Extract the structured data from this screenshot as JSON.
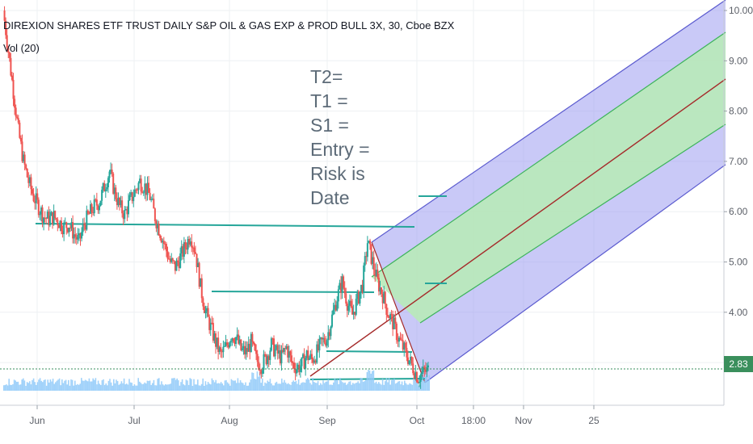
{
  "header": {
    "title": "DIREXION SHARES ETF TRUST DAILY S&P OIL & GAS EXP & PROD BULL 3X, 30, Cboe BZX",
    "volume_label": "Vol (20)"
  },
  "notes": [
    "T2=",
    "T1 =",
    "S1 =",
    "Entry =",
    "Risk is",
    "Date"
  ],
  "last_price": "2.83",
  "colors": {
    "up": "#26a69a",
    "down": "#ef5350",
    "outer_band": "#9c9cf0",
    "inner_band": "#b8eab8",
    "median": "#a52a2a",
    "horizontal_lines": "#26a69a",
    "volume": "#90caf9",
    "price_badge": "#3a8f5c"
  },
  "chart_data": {
    "type": "line",
    "title": "DIREXION SHARES ETF TRUST DAILY S&P OIL & GAS EXP & PROD BULL 3X, 30, Cboe BZX",
    "x_ticks": [
      "Jun",
      "Jul",
      "Aug",
      "Sep",
      "Oct",
      "18:00",
      "Nov",
      "25"
    ],
    "y_ticks": [
      "3.00",
      "4.00",
      "5.00",
      "6.00",
      "7.00",
      "8.00",
      "9.00",
      "10.00"
    ],
    "ylim": [
      2.1,
      10.1
    ],
    "series": [
      {
        "values": [
          10.0,
          9.2,
          8.4,
          7.6,
          7.0,
          6.6,
          6.3,
          6.1,
          5.9,
          5.85,
          5.9,
          5.8,
          5.7,
          5.75,
          5.55,
          5.4,
          5.75,
          5.95,
          6.1,
          6.2,
          6.5,
          6.8,
          6.4,
          6.1,
          5.95,
          6.2,
          6.4,
          6.6,
          6.5,
          6.3,
          5.9,
          5.6,
          5.3,
          5.0,
          4.9,
          5.1,
          5.3,
          5.55,
          5.2,
          4.5,
          4.0,
          3.7,
          3.4,
          3.15,
          3.3,
          3.55,
          3.5,
          3.25,
          3.2,
          3.4,
          3.05,
          2.95,
          3.1,
          3.35,
          3.2,
          3.1,
          3.3,
          3.0,
          2.9,
          2.95,
          3.15,
          3.05,
          3.2,
          3.4,
          3.5,
          3.9,
          4.3,
          4.6,
          4.2,
          3.95,
          4.25,
          4.55,
          5.4,
          5.0,
          4.6,
          4.35,
          4.0,
          3.8,
          3.5,
          3.3,
          3.1,
          2.9,
          2.7,
          2.8,
          2.85
        ]
      }
    ],
    "annotations": [
      "T2=",
      "T1 =",
      "S1 =",
      "Entry =",
      "Risk is",
      "Date"
    ],
    "grid": true
  }
}
